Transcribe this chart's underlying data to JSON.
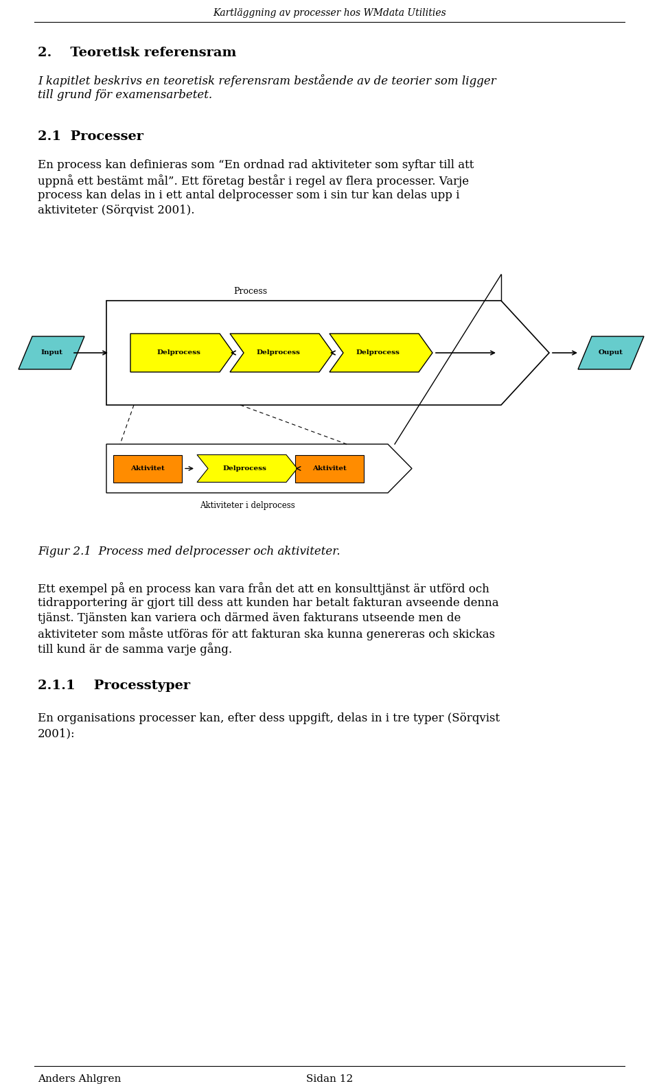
{
  "header_text": "Kartläggning av processer hos WMdata Utilities",
  "section_heading": "2.    Teoretisk referensram",
  "section_intro_line1": "I kapitlet beskrivs en teoretisk referensram bestående av de teorier som ligger",
  "section_intro_line2": "till grund för examensarbetet.",
  "subsection_heading": "2.1  Processer",
  "para1_line1": "En process kan definieras som “En ordnad rad aktiviteter som syftar till att",
  "para1_line2": "uppnå ett bestämt mål”. Ett företag består i regel av flera processer. Varje",
  "para1_line3": "process kan delas in i ett antal delprocesser som i sin tur kan delas upp i",
  "para1_line4": "aktiviteter (Sörqvist 2001).",
  "fig_caption": "Figur 2.1  Process med delprocesser och aktiviteter.",
  "para2_line1": "Ett exempel på en process kan vara från det att en konsulttjänst är utförd och",
  "para2_line2": "tidrapportering är gjort till dess att kunden har betalt fakturan avseende denna",
  "para2_line3": "tjänst. Tjänsten kan variera och därmed även fakturans utseende men de",
  "para2_line4": "aktiviteter som måste utföras för att fakturan ska kunna genereras och skickas",
  "para2_line5": "till kund är de samma varje gång.",
  "subsection2_heading": "2.1.1    Processtyper",
  "para3_line1": "En organisations processer kan, efter dess uppgift, delas in i tre typer (Sörqvist",
  "para3_line2": "2001):",
  "footer_left": "Anders Ahlgren",
  "footer_center": "Sidan 12",
  "bg_color": "#ffffff",
  "text_color": "#000000",
  "cyan_color": "#66cccc",
  "yellow_color": "#ffff00",
  "orange_color": "#ff8c00",
  "process_label": "Process",
  "aktiviteter_label": "Aktiviteter i delprocess",
  "input_label": "Input",
  "output_label": "Ouput",
  "delprocess_label": "Delprocess",
  "aktivitet_label": "Aktivitet"
}
